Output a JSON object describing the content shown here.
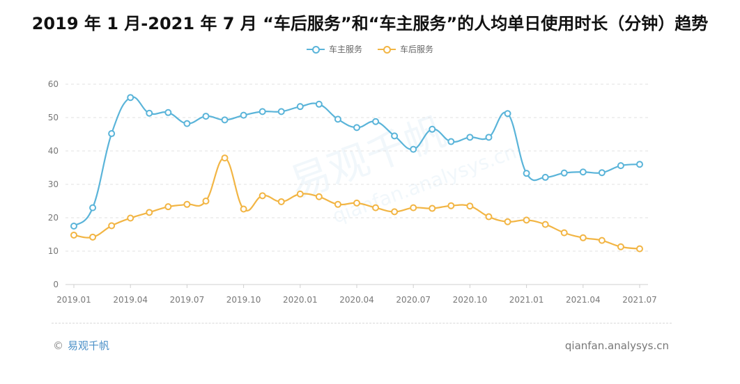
{
  "title": "2019 年 1 月-2021 年 7 月 “车后服务”和“车主服务”的人均单日使用时长（分钟）趋势",
  "watermark": "易观千帆",
  "watermark_sub": "qianfan.analysys.cn",
  "footer": {
    "copyright_symbol": "©",
    "brand": "易观千帆",
    "site": "qianfan.analysys.cn"
  },
  "chart_data": {
    "type": "line",
    "title": "2019 年 1 月-2021 年 7 月 “车后服务”和“车主服务”的人均单日使用时长（分钟）趋势",
    "xlabel": "",
    "ylabel": "",
    "ylim": [
      0,
      60
    ],
    "yticks": [
      "0",
      "10",
      "20",
      "30",
      "40",
      "50",
      "60"
    ],
    "grid": true,
    "legend": "top-center",
    "x": [
      "2019.01",
      "2019.02",
      "2019.03",
      "2019.04",
      "2019.05",
      "2019.06",
      "2019.07",
      "2019.08",
      "2019.09",
      "2019.10",
      "2019.11",
      "2019.12",
      "2020.01",
      "2020.02",
      "2020.03",
      "2020.04",
      "2020.05",
      "2020.06",
      "2020.07",
      "2020.08",
      "2020.09",
      "2020.10",
      "2020.11",
      "2020.12",
      "2021.01",
      "2021.02",
      "2021.03",
      "2021.04",
      "2021.05",
      "2021.06",
      "2021.07"
    ],
    "xticks": [
      "2019.01",
      "2019.04",
      "2019.07",
      "2019.10",
      "2020.01",
      "2020.04",
      "2020.07",
      "2020.10",
      "2021.01",
      "2021.04",
      "2021.07"
    ],
    "series": [
      {
        "name": "车主服务",
        "color": "#5ab4d9",
        "values": [
          17.5,
          23.0,
          45.2,
          56.0,
          51.3,
          51.5,
          48.2,
          50.4,
          49.3,
          50.7,
          51.8,
          51.8,
          53.3,
          54.0,
          49.5,
          47.0,
          48.8,
          44.5,
          40.5,
          46.5,
          42.8,
          44.1,
          44.1,
          51.2,
          33.3,
          32.1,
          33.4,
          33.7,
          33.5,
          35.6,
          36.0
        ]
      },
      {
        "name": "车后服务",
        "color": "#f2b544",
        "values": [
          14.8,
          14.2,
          17.6,
          19.9,
          21.6,
          23.3,
          24.0,
          25.0,
          37.9,
          22.6,
          26.6,
          24.8,
          27.1,
          26.3,
          24.0,
          24.4,
          23.0,
          21.8,
          23.0,
          22.8,
          23.6,
          23.5,
          20.3,
          18.8,
          19.3,
          18.0,
          15.5,
          14.0,
          13.2,
          11.3,
          10.7
        ]
      }
    ]
  }
}
